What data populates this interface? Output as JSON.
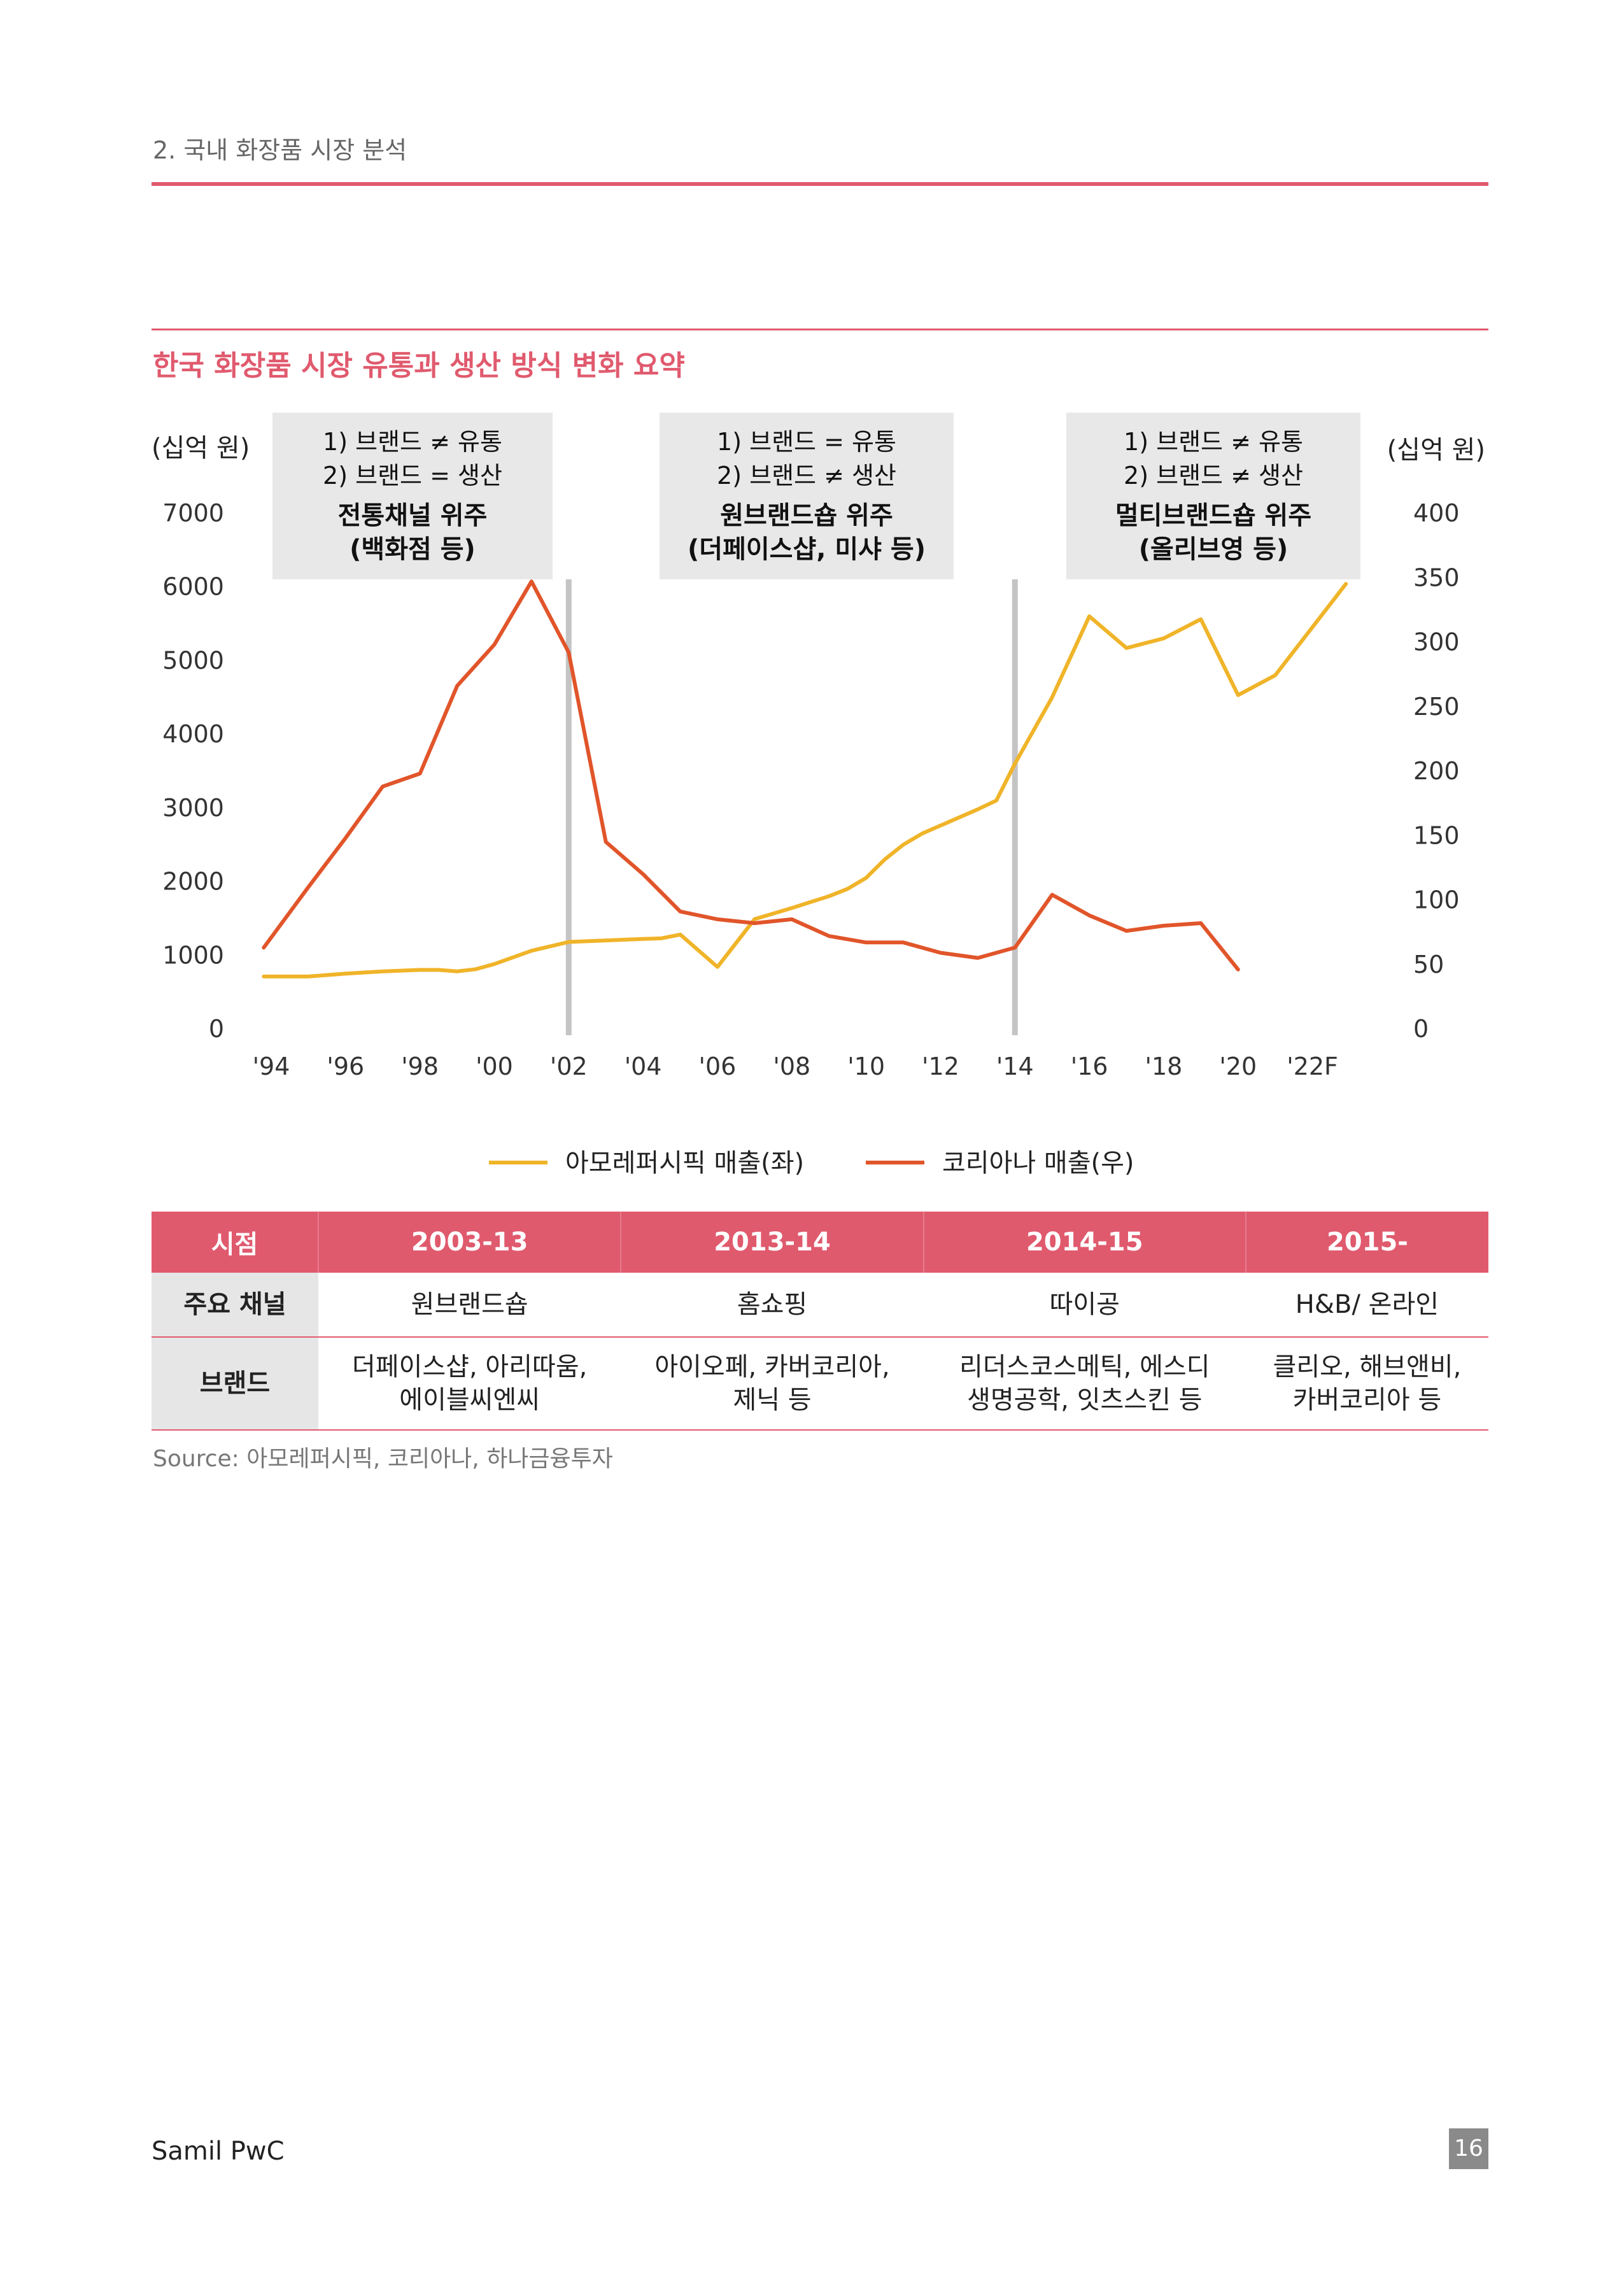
{
  "header": {
    "section_title": "2. 국내 화장품 시장 분석"
  },
  "chart_title": "한국 화장품 시장 유통과 생산 방식 변화 요약",
  "chart_data": {
    "type": "line",
    "title": "한국 화장품 시장 유통과 생산 방식 변화 요약",
    "y_left_label": "(십억 원)",
    "y_right_label": "(십억 원)",
    "y_left_lim": [
      0,
      7000
    ],
    "y_right_lim": [
      0,
      400
    ],
    "y_left_ticks": [
      "0",
      "1000",
      "2000",
      "3000",
      "4000",
      "5000",
      "6000",
      "7000"
    ],
    "y_right_ticks": [
      "0",
      "50",
      "100",
      "150",
      "200",
      "250",
      "300",
      "350",
      "400"
    ],
    "x_lim": [
      1994,
      2023
    ],
    "x_tick_labels": [
      "'94",
      "'96",
      "'98",
      "'00",
      "'02",
      "'04",
      "'06",
      "'08",
      "'10",
      "'12",
      "'14",
      "'16",
      "'18",
      "'20",
      "'22F"
    ],
    "x_ticks": [
      1994,
      1996,
      1998,
      2000,
      2002,
      2004,
      2006,
      2008,
      2010,
      2012,
      2014,
      2016,
      2018,
      2020,
      2022
    ],
    "grid": false,
    "legend_position": "bottom",
    "series": [
      {
        "name": "아모레퍼시픽 매출(좌)",
        "axis": "left",
        "color": "#f0b429",
        "points": [
          [
            1993.8,
            710
          ],
          [
            1995,
            710
          ],
          [
            1996,
            750
          ],
          [
            1997,
            780
          ],
          [
            1998,
            800
          ],
          [
            1998.5,
            800
          ],
          [
            1999,
            780
          ],
          [
            1999.5,
            810
          ],
          [
            2000,
            880
          ],
          [
            2001,
            1060
          ],
          [
            2002,
            1180
          ],
          [
            2003,
            1200
          ],
          [
            2004,
            1220
          ],
          [
            2004.5,
            1230
          ],
          [
            2005,
            1280
          ],
          [
            2006,
            840
          ],
          [
            2007,
            1490
          ],
          [
            2008,
            1640
          ],
          [
            2009,
            1800
          ],
          [
            2009.5,
            1900
          ],
          [
            2010,
            2050
          ],
          [
            2010.5,
            2300
          ],
          [
            2011,
            2500
          ],
          [
            2011.5,
            2650
          ],
          [
            2012,
            2760
          ],
          [
            2013,
            2980
          ],
          [
            2013.5,
            3100
          ],
          [
            2014,
            3600
          ],
          [
            2015,
            4500
          ],
          [
            2016,
            5600
          ],
          [
            2017,
            5170
          ],
          [
            2018,
            5300
          ],
          [
            2019,
            5560
          ],
          [
            2020,
            4530
          ],
          [
            2021,
            4800
          ],
          [
            2022.9,
            6040
          ]
        ]
      },
      {
        "name": "코리아나 매출(우)",
        "axis": "right",
        "color": "#e1552a",
        "points": [
          [
            1993.8,
            63
          ],
          [
            1995,
            110
          ],
          [
            1996,
            148
          ],
          [
            1997,
            188
          ],
          [
            1998,
            198
          ],
          [
            1999,
            266
          ],
          [
            2000,
            298
          ],
          [
            2001,
            347
          ],
          [
            2002,
            292
          ],
          [
            2003,
            145
          ],
          [
            2004,
            120
          ],
          [
            2005,
            91
          ],
          [
            2006,
            85
          ],
          [
            2007,
            82
          ],
          [
            2008,
            85
          ],
          [
            2009,
            72
          ],
          [
            2010,
            67
          ],
          [
            2011,
            67
          ],
          [
            2012,
            59
          ],
          [
            2013,
            55
          ],
          [
            2014,
            63
          ],
          [
            2015,
            104
          ],
          [
            2016,
            88
          ],
          [
            2017,
            76
          ],
          [
            2018,
            80
          ],
          [
            2019,
            82
          ],
          [
            2020,
            46
          ]
        ]
      }
    ],
    "vertical_markers": [
      2002,
      2014
    ],
    "annotations": [
      {
        "line1": "1) 브랜드 ≠ 유통",
        "line2": "2) 브랜드 = 생산",
        "bold1": "전통채널 위주",
        "bold2": "(백화점 등)"
      },
      {
        "line1": "1) 브랜드 = 유통",
        "line2": "2) 브랜드 ≠ 생산",
        "bold1": "원브랜드숍 위주",
        "bold2": "(더페이스샵, 미샤 등)"
      },
      {
        "line1": "1) 브랜드 ≠ 유통",
        "line2": "2) 브랜드 ≠ 생산",
        "bold1": "멀티브랜드숍 위주",
        "bold2": "(올리브영 등)"
      }
    ]
  },
  "table": {
    "headers": [
      "시점",
      "2003-13",
      "2013-14",
      "2014-15",
      "2015-"
    ],
    "row_channel": {
      "label": "주요 채널",
      "cells": [
        "원브랜드숍",
        "홈쇼핑",
        "따이공",
        "H&B/ 온라인"
      ]
    },
    "row_brand": {
      "label": "브랜드",
      "cells": [
        {
          "l1": "더페이스샵, 아리따움,",
          "l2": "에이블씨엔씨"
        },
        {
          "l1": "아이오페, 카버코리아,",
          "l2": "제닉 등"
        },
        {
          "l1": "리더스코스메틱, 에스디",
          "l2": "생명공학, 잇츠스킨 등"
        },
        {
          "l1": "클리오, 해브앤비,",
          "l2": "카버코리아 등"
        }
      ]
    }
  },
  "source": "Source: 아모레퍼시픽, 코리아나, 하나금융투자",
  "footer": {
    "company": "Samil PwC",
    "page_number": "16"
  }
}
